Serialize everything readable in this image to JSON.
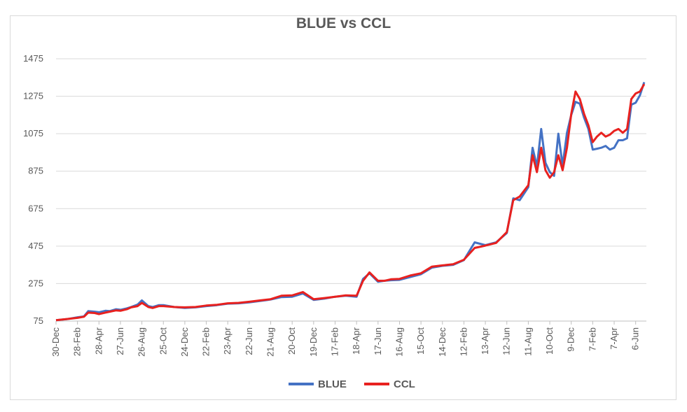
{
  "chart_data": {
    "type": "line",
    "title": "BLUE vs CCL",
    "xlabel": "",
    "ylabel": "",
    "ylim": [
      75,
      1475
    ],
    "yticks": [
      75,
      275,
      475,
      675,
      875,
      1075,
      1275,
      1475
    ],
    "x_tick_labels": [
      "30-Dec",
      "28-Feb",
      "28-Apr",
      "27-Jun",
      "26-Aug",
      "25-Oct",
      "24-Dec",
      "22-Feb",
      "23-Apr",
      "22-Jun",
      "21-Aug",
      "20-Oct",
      "19-Dec",
      "17-Feb",
      "18-Apr",
      "17-Jun",
      "16-Aug",
      "15-Oct",
      "14-Dec",
      "12-Feb",
      "13-Apr",
      "12-Jun",
      "11-Aug",
      "10-Oct",
      "9-Dec",
      "7-Feb",
      "7-Apr",
      "6-Jun"
    ],
    "grid": true,
    "legend_position": "bottom",
    "series": [
      {
        "name": "BLUE",
        "color": "#4472C4",
        "x": [
          0,
          0.5,
          1,
          1.3,
          1.5,
          1.8,
          2,
          2.3,
          2.5,
          2.8,
          3,
          3.3,
          3.5,
          3.8,
          4,
          4.3,
          4.5,
          4.8,
          5,
          5.5,
          6,
          6.5,
          7,
          7.5,
          8,
          8.5,
          9,
          9.5,
          10,
          10.5,
          11,
          11.5,
          12,
          12.5,
          13,
          13.5,
          14,
          14.3,
          14.6,
          15,
          15.3,
          15.6,
          16,
          16.5,
          17,
          17.5,
          18,
          18.5,
          19,
          19.5,
          20,
          20.5,
          21,
          21.3,
          21.6,
          22,
          22.2,
          22.4,
          22.6,
          22.8,
          23,
          23.2,
          23.4,
          23.6,
          23.8,
          24,
          24.2,
          24.4,
          24.6,
          24.8,
          25,
          25.2,
          25.4,
          25.6,
          25.8,
          26,
          26.2,
          26.4,
          26.6,
          26.8,
          27,
          27.2,
          27.4
        ],
        "values": [
          80,
          85,
          95,
          100,
          128,
          125,
          122,
          130,
          128,
          138,
          135,
          143,
          150,
          163,
          185,
          155,
          150,
          160,
          160,
          150,
          145,
          148,
          155,
          160,
          168,
          170,
          175,
          182,
          190,
          203,
          205,
          222,
          188,
          195,
          205,
          210,
          205,
          300,
          330,
          285,
          290,
          293,
          295,
          310,
          325,
          360,
          370,
          375,
          400,
          495,
          480,
          495,
          545,
          730,
          720,
          790,
          1000,
          900,
          1100,
          920,
          870,
          850,
          1075,
          905,
          1080,
          1175,
          1245,
          1235,
          1160,
          1100,
          990,
          995,
          1000,
          1010,
          990,
          1000,
          1040,
          1040,
          1050,
          1230,
          1240,
          1280,
          1350
        ]
      },
      {
        "name": "CCL",
        "color": "#E8211F",
        "x": [
          0,
          0.5,
          1,
          1.3,
          1.5,
          1.8,
          2,
          2.3,
          2.5,
          2.8,
          3,
          3.3,
          3.5,
          3.8,
          4,
          4.3,
          4.5,
          4.8,
          5,
          5.5,
          6,
          6.5,
          7,
          7.5,
          8,
          8.5,
          9,
          9.5,
          10,
          10.5,
          11,
          11.5,
          12,
          12.5,
          13,
          13.5,
          14,
          14.3,
          14.6,
          15,
          15.3,
          15.6,
          16,
          16.5,
          17,
          17.5,
          18,
          18.5,
          19,
          19.5,
          20,
          20.5,
          21,
          21.3,
          21.6,
          22,
          22.2,
          22.4,
          22.6,
          22.8,
          23,
          23.2,
          23.4,
          23.6,
          23.8,
          24,
          24.2,
          24.4,
          24.6,
          24.8,
          25,
          25.2,
          25.4,
          25.6,
          25.8,
          26,
          26.2,
          26.4,
          26.6,
          26.8,
          27,
          27.2,
          27.4
        ],
        "values": [
          80,
          86,
          92,
          98,
          120,
          118,
          112,
          120,
          125,
          132,
          130,
          138,
          148,
          155,
          172,
          150,
          145,
          155,
          155,
          150,
          148,
          150,
          158,
          162,
          170,
          172,
          178,
          185,
          192,
          210,
          212,
          230,
          192,
          198,
          205,
          212,
          210,
          290,
          335,
          290,
          290,
          298,
          300,
          318,
          330,
          365,
          372,
          378,
          402,
          465,
          478,
          492,
          550,
          720,
          740,
          800,
          960,
          870,
          1000,
          880,
          840,
          870,
          960,
          880,
          1000,
          1180,
          1300,
          1260,
          1180,
          1120,
          1030,
          1060,
          1080,
          1060,
          1070,
          1090,
          1100,
          1080,
          1100,
          1260,
          1290,
          1300,
          1340
        ]
      }
    ]
  }
}
